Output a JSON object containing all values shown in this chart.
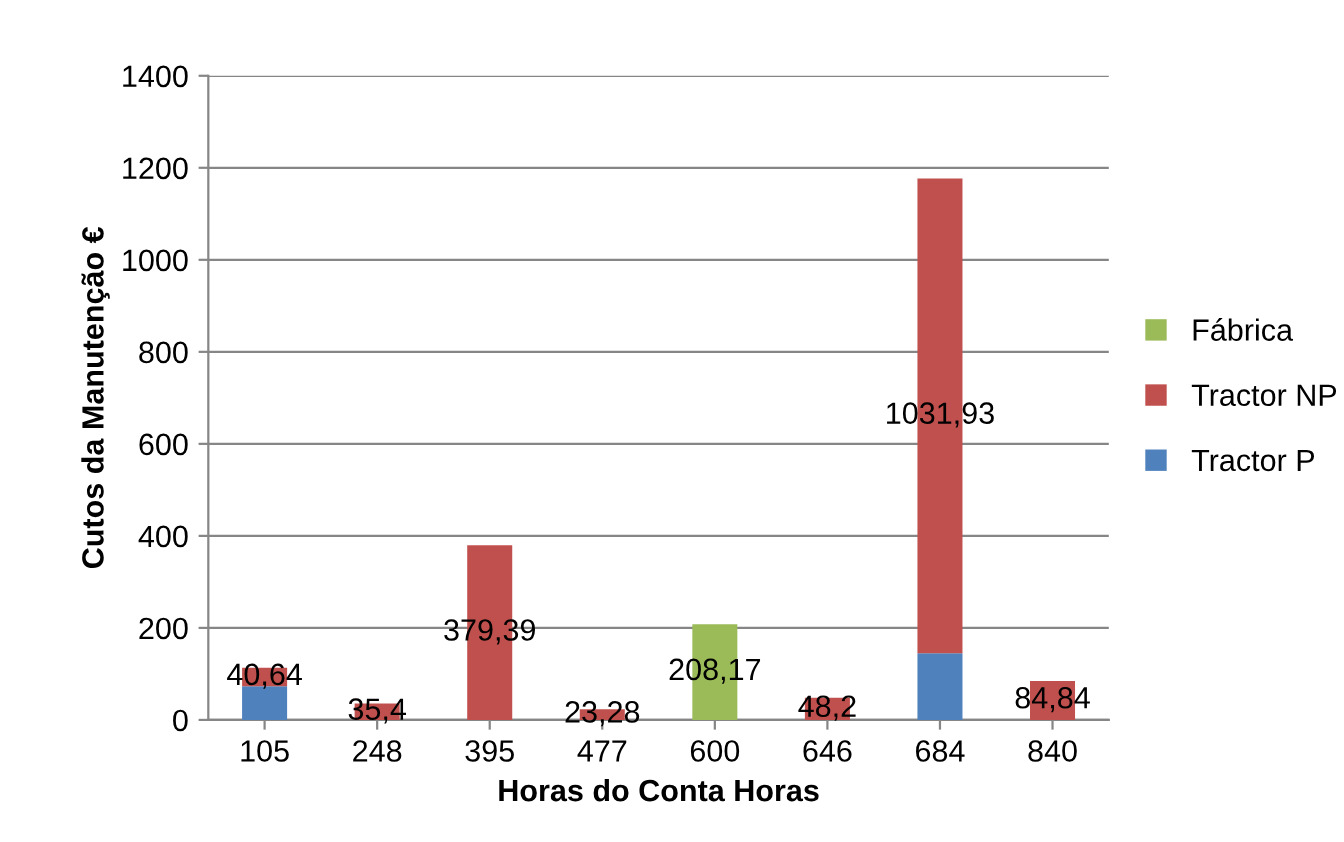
{
  "chart_data": {
    "type": "bar",
    "stacked": true,
    "xlabel": "Horas do Conta Horas",
    "ylabel": "Cutos da Manutenção €",
    "categories": [
      "105",
      "248",
      "395",
      "477",
      "600",
      "646",
      "684",
      "840"
    ],
    "series": [
      {
        "name": "Tractor P",
        "color": "#4f81bd",
        "values": [
          73,
          0,
          0,
          0,
          0,
          0,
          145,
          0
        ],
        "value_labels": [
          null,
          null,
          null,
          null,
          null,
          null,
          null,
          null
        ]
      },
      {
        "name": "Tractor NP",
        "color": "#c0504d",
        "values": [
          40.64,
          35.4,
          379.39,
          23.28,
          0,
          48.2,
          1031.93,
          84.84
        ],
        "value_labels": [
          "40,64",
          "35,4",
          "379,39",
          "23,28",
          null,
          "48,2",
          "1031,93",
          "84,84"
        ]
      },
      {
        "name": "Fábrica",
        "color": "#9bbb59",
        "values": [
          0,
          0,
          0,
          0,
          208.17,
          0,
          0,
          0
        ],
        "value_labels": [
          null,
          null,
          null,
          null,
          "208,17",
          null,
          null,
          null
        ]
      }
    ],
    "ylim": [
      0,
      1400
    ],
    "yticks": [
      0,
      200,
      400,
      600,
      800,
      1000,
      1200,
      1400
    ],
    "grid": "y",
    "legend": "right"
  }
}
